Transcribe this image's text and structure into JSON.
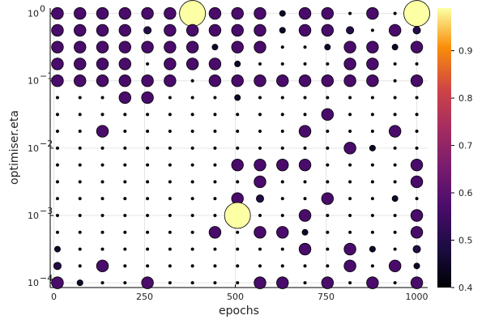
{
  "chart_data": {
    "type": "scatter",
    "title": "",
    "xlabel": "epochs",
    "ylabel": "optimiser.eta",
    "xlim": [
      -10,
      1030
    ],
    "ylog": true,
    "ylim": [
      8.5e-05,
      1.2
    ],
    "grid": true,
    "colormap": "inferno",
    "colorbar_range": [
      0.4,
      0.99
    ],
    "x_ticks": [
      {
        "v": 0,
        "label": "0"
      },
      {
        "v": 250,
        "label": "250"
      },
      {
        "v": 500,
        "label": "500"
      },
      {
        "v": 750,
        "label": "750"
      },
      {
        "v": 1000,
        "label": "1000"
      }
    ],
    "y_ticks": [
      {
        "v": 1,
        "base": "10",
        "exp": "0"
      },
      {
        "v": 0.1,
        "base": "10",
        "exp": "−1"
      },
      {
        "v": 0.01,
        "base": "10",
        "exp": "−2"
      },
      {
        "v": 0.001,
        "base": "10",
        "exp": "−3"
      },
      {
        "v": 0.0001,
        "base": "10",
        "exp": "−4"
      }
    ],
    "colorbar_ticks": [
      "0.4",
      "0.5",
      "0.6",
      "0.7",
      "0.8",
      "0.9"
    ],
    "colorbar_tick_values": [
      0.4,
      0.5,
      0.6,
      0.7,
      0.8,
      0.9
    ],
    "x_grid": [
      10,
      72,
      134,
      196,
      258,
      320,
      382,
      444,
      506,
      568,
      630,
      692,
      754,
      816,
      878,
      940,
      1000
    ],
    "y_grid": [
      1.0,
      0.562,
      0.316,
      0.178,
      0.1,
      0.0562,
      0.0316,
      0.0178,
      0.01,
      0.00562,
      0.00316,
      0.00178,
      0.001,
      0.000562,
      0.000316,
      0.000178,
      0.0001
    ],
    "note_values": "value 0..1 per grid cell; rows top to bottom, columns left to right",
    "values": [
      [
        0.57,
        0.57,
        0.57,
        0.57,
        0.57,
        0.57,
        0.99,
        0.57,
        0.57,
        0.57,
        0.45,
        0.57,
        0.57,
        0.4,
        0.57,
        0.4,
        0.99
      ],
      [
        0.57,
        0.57,
        0.57,
        0.57,
        0.5,
        0.57,
        0.57,
        0.57,
        0.57,
        0.57,
        0.45,
        0.57,
        0.57,
        0.5,
        0.4,
        0.57,
        0.5
      ],
      [
        0.57,
        0.57,
        0.57,
        0.57,
        0.57,
        0.57,
        0.57,
        0.45,
        0.57,
        0.57,
        0.4,
        0.4,
        0.45,
        0.57,
        0.57,
        0.45,
        0.57
      ],
      [
        0.57,
        0.57,
        0.57,
        0.57,
        0.4,
        0.57,
        0.57,
        0.57,
        0.45,
        0.4,
        0.4,
        0.4,
        0.4,
        0.57,
        0.57,
        0.4,
        0.4
      ],
      [
        0.57,
        0.57,
        0.57,
        0.57,
        0.57,
        0.57,
        0.4,
        0.57,
        0.57,
        0.57,
        0.57,
        0.57,
        0.57,
        0.57,
        0.57,
        0.4,
        0.57
      ],
      [
        0.4,
        0.4,
        0.4,
        0.57,
        0.57,
        0.4,
        0.4,
        0.4,
        0.45,
        0.4,
        0.4,
        0.4,
        0.4,
        0.4,
        0.4,
        0.4,
        0.4
      ],
      [
        0.4,
        0.4,
        0.4,
        0.4,
        0.4,
        0.4,
        0.4,
        0.4,
        0.4,
        0.4,
        0.4,
        0.4,
        0.57,
        0.4,
        0.4,
        0.4,
        0.4
      ],
      [
        0.4,
        0.4,
        0.57,
        0.4,
        0.4,
        0.4,
        0.4,
        0.4,
        0.4,
        0.4,
        0.4,
        0.57,
        0.4,
        0.4,
        0.4,
        0.57,
        0.4
      ],
      [
        0.4,
        0.4,
        0.4,
        0.4,
        0.4,
        0.4,
        0.4,
        0.4,
        0.4,
        0.4,
        0.4,
        0.4,
        0.4,
        0.57,
        0.45,
        0.4,
        0.4
      ],
      [
        0.4,
        0.4,
        0.4,
        0.4,
        0.4,
        0.4,
        0.4,
        0.4,
        0.57,
        0.57,
        0.57,
        0.57,
        0.4,
        0.4,
        0.4,
        0.4,
        0.57
      ],
      [
        0.4,
        0.4,
        0.4,
        0.4,
        0.4,
        0.4,
        0.4,
        0.4,
        0.4,
        0.57,
        0.4,
        0.4,
        0.4,
        0.4,
        0.4,
        0.4,
        0.57
      ],
      [
        0.4,
        0.4,
        0.4,
        0.4,
        0.4,
        0.4,
        0.4,
        0.4,
        0.57,
        0.5,
        0.4,
        0.4,
        0.57,
        0.4,
        0.4,
        0.45,
        0.4
      ],
      [
        0.4,
        0.4,
        0.4,
        0.4,
        0.4,
        0.4,
        0.4,
        0.4,
        0.99,
        0.4,
        0.4,
        0.57,
        0.4,
        0.4,
        0.4,
        0.4,
        0.57
      ],
      [
        0.4,
        0.4,
        0.4,
        0.4,
        0.4,
        0.4,
        0.4,
        0.57,
        0.4,
        0.57,
        0.57,
        0.45,
        0.4,
        0.4,
        0.4,
        0.4,
        0.57
      ],
      [
        0.45,
        0.4,
        0.4,
        0.4,
        0.4,
        0.4,
        0.4,
        0.4,
        0.4,
        0.4,
        0.4,
        0.57,
        0.4,
        0.57,
        0.45,
        0.4,
        0.5
      ],
      [
        0.5,
        0.4,
        0.57,
        0.4,
        0.4,
        0.4,
        0.4,
        0.4,
        0.4,
        0.4,
        0.4,
        0.4,
        0.4,
        0.57,
        0.4,
        0.57,
        0.45
      ],
      [
        0.57,
        0.45,
        0.4,
        0.4,
        0.57,
        0.4,
        0.4,
        0.4,
        0.4,
        0.57,
        0.57,
        0.4,
        0.57,
        0.4,
        0.57,
        0.4,
        0.57
      ]
    ]
  }
}
